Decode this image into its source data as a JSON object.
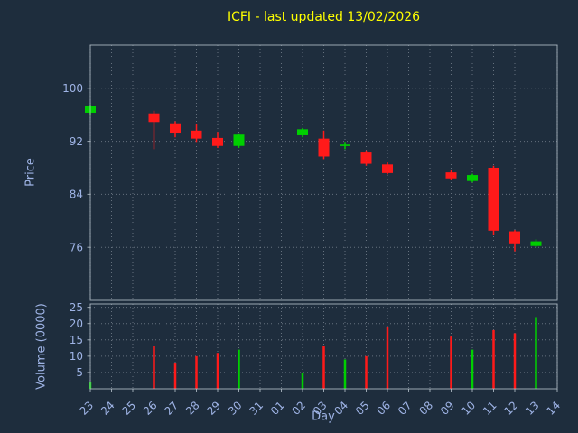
{
  "colors": {
    "background": "#1e2d3d",
    "title": "#ffff00",
    "axis_text": "#9fb4e6",
    "grid": "#cfd8e0",
    "spine": "#b9c4ce",
    "up": "#00d000",
    "down": "#ff1a1a"
  },
  "chart_data": {
    "type": "candlestick",
    "title": "ICFI - last updated 13/02/2026",
    "xlabel": "Day",
    "price_ylabel": "Price",
    "volume_ylabel": "Volume (0000)",
    "grid": true,
    "legend": false,
    "x_ticklabels": [
      "23",
      "24",
      "25",
      "26",
      "27",
      "28",
      "29",
      "30",
      "31",
      "01",
      "02",
      "03",
      "04",
      "05",
      "06",
      "07",
      "08",
      "09",
      "10",
      "11",
      "12",
      "13",
      "14"
    ],
    "price_yticks": [
      76,
      84,
      92,
      100
    ],
    "price_ylim": [
      68,
      106.5
    ],
    "volume_yticks": [
      5,
      10,
      15,
      20,
      25
    ],
    "volume_ylim": [
      0,
      26
    ],
    "candles": [
      {
        "x": 0,
        "day": "23",
        "open": 96.3,
        "high": 97.5,
        "low": 96.0,
        "close": 97.3,
        "volume": 2
      },
      {
        "x": 3,
        "day": "26",
        "open": 96.2,
        "high": 96.6,
        "low": 90.8,
        "close": 94.9,
        "volume": 13
      },
      {
        "x": 4,
        "day": "27",
        "open": 94.7,
        "high": 95.0,
        "low": 92.6,
        "close": 93.3,
        "volume": 8
      },
      {
        "x": 5,
        "day": "28",
        "open": 93.6,
        "high": 94.6,
        "low": 91.9,
        "close": 92.4,
        "volume": 10
      },
      {
        "x": 6,
        "day": "29",
        "open": 92.5,
        "high": 93.4,
        "low": 91.0,
        "close": 91.3,
        "volume": 11
      },
      {
        "x": 7,
        "day": "30",
        "open": 91.3,
        "high": 93.2,
        "low": 91.0,
        "close": 93.0,
        "volume": 12
      },
      {
        "x": 10,
        "day": "02",
        "open": 92.9,
        "high": 94.0,
        "low": 92.6,
        "close": 93.8,
        "volume": 5
      },
      {
        "x": 11,
        "day": "03",
        "open": 92.4,
        "high": 93.6,
        "low": 89.3,
        "close": 89.7,
        "volume": 13
      },
      {
        "x": 12,
        "day": "04",
        "open": 91.4,
        "high": 91.9,
        "low": 90.8,
        "close": 91.5,
        "volume": 9
      },
      {
        "x": 13,
        "day": "05",
        "open": 90.3,
        "high": 90.6,
        "low": 88.3,
        "close": 88.6,
        "volume": 10
      },
      {
        "x": 14,
        "day": "06",
        "open": 88.5,
        "high": 88.8,
        "low": 87.0,
        "close": 87.2,
        "volume": 19
      },
      {
        "x": 17,
        "day": "09",
        "open": 87.3,
        "high": 87.6,
        "low": 86.2,
        "close": 86.4,
        "volume": 16
      },
      {
        "x": 18,
        "day": "10",
        "open": 86.0,
        "high": 87.1,
        "low": 85.8,
        "close": 86.9,
        "volume": 12
      },
      {
        "x": 19,
        "day": "11",
        "open": 88.0,
        "high": 88.3,
        "low": 77.9,
        "close": 78.5,
        "volume": 18
      },
      {
        "x": 20,
        "day": "12",
        "open": 78.4,
        "high": 78.6,
        "low": 75.4,
        "close": 76.6,
        "volume": 17
      },
      {
        "x": 21,
        "day": "13",
        "open": 76.2,
        "high": 77.2,
        "low": 76.0,
        "close": 76.9,
        "volume": 22
      }
    ]
  }
}
